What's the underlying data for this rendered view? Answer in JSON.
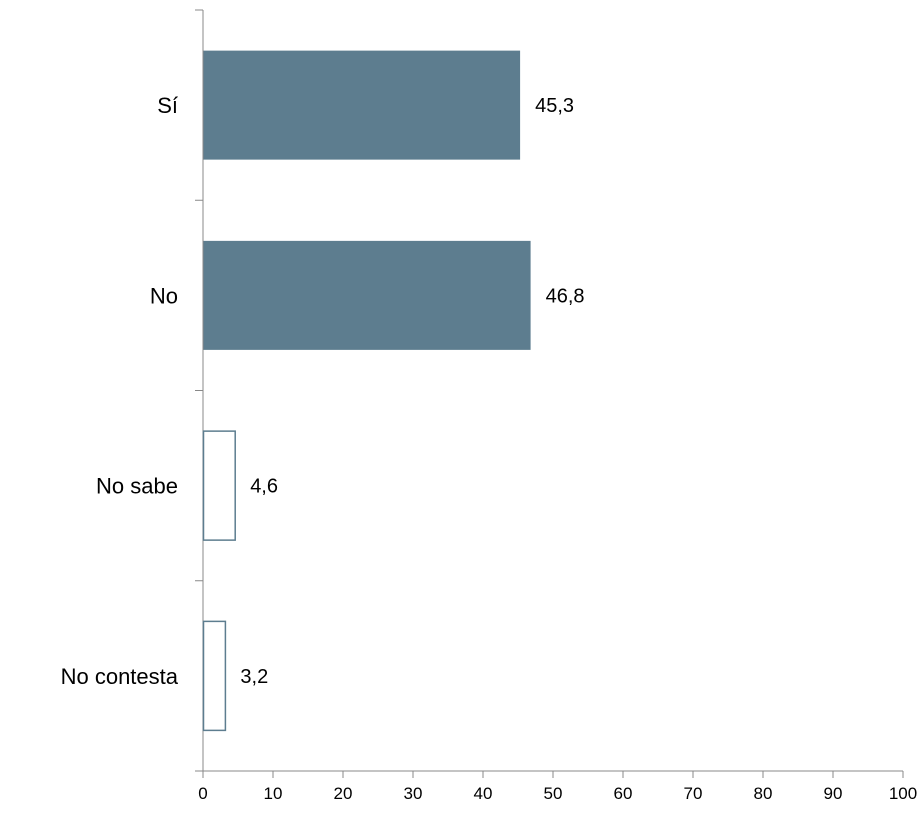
{
  "chart_data": {
    "type": "bar",
    "orientation": "horizontal",
    "categories": [
      "Sí",
      "No",
      "No sabe",
      "No contesta"
    ],
    "values": [
      45.3,
      46.8,
      4.6,
      3.2
    ],
    "value_labels": [
      "45,3",
      "46,8",
      "4,6",
      "3,2"
    ],
    "bar_styles": [
      "filled",
      "filled",
      "outline",
      "outline"
    ],
    "xlim": [
      0,
      100
    ],
    "xticks": [
      0,
      10,
      20,
      30,
      40,
      50,
      60,
      70,
      80,
      90,
      100
    ],
    "xtick_labels": [
      "0",
      "10",
      "20",
      "30",
      "40",
      "50",
      "60",
      "70",
      "80",
      "90",
      "100"
    ],
    "title": "",
    "xlabel": "",
    "ylabel": "",
    "grid": false,
    "legend": "none",
    "colors": {
      "fill": "#5d7d8f",
      "outline": "#5d7d8f",
      "axis": "#888888"
    }
  }
}
